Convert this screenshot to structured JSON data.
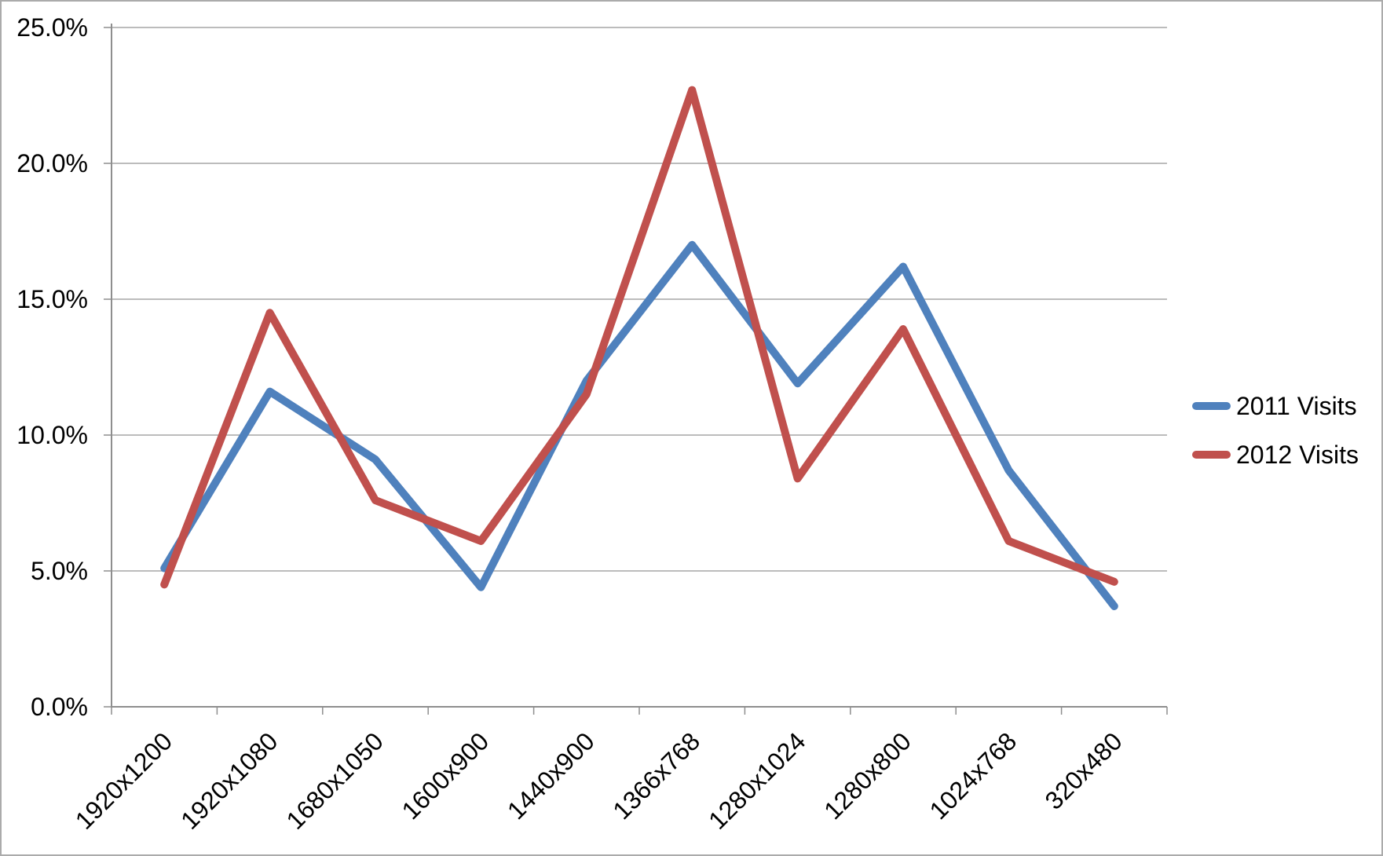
{
  "chart_data": {
    "type": "line",
    "title": "",
    "categories": [
      "1920x1200",
      "1920x1080",
      "1680x1050",
      "1600x900",
      "1440x900",
      "1366x768",
      "1280x1024",
      "1280x800",
      "1024x768",
      "320x480"
    ],
    "series": [
      {
        "name": "2011 Visits",
        "color": "#4F81BD",
        "values": [
          5.1,
          11.6,
          9.1,
          4.4,
          12.0,
          17.0,
          11.9,
          16.2,
          8.7,
          3.7
        ]
      },
      {
        "name": "2012 Visits",
        "color": "#C0504D",
        "values": [
          4.5,
          14.5,
          7.6,
          6.1,
          11.5,
          22.7,
          8.4,
          13.9,
          6.1,
          4.6
        ]
      }
    ],
    "xlabel": "",
    "ylabel": "",
    "ylim": [
      0,
      25
    ],
    "y_tick_step": 5,
    "y_tick_labels": [
      "0.0%",
      "5.0%",
      "10.0%",
      "15.0%",
      "20.0%",
      "25.0%"
    ],
    "x_tick_rotation_deg": -45,
    "grid": true,
    "legend_position": "right",
    "gridline_color": "#A6A6A6",
    "axis_color": "#8E8E8E",
    "frame_border_color": "#ABABAB",
    "text_color": "#000000"
  }
}
